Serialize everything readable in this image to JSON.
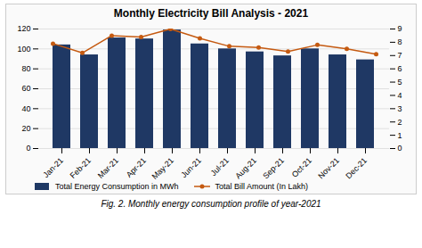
{
  "chart_data": {
    "type": "bar",
    "title": "Monthly Electricity Bill Analysis - 2021",
    "caption": "Fig. 2. Monthly energy consumption profile of year-2021",
    "categories": [
      "Jan-21",
      "Feb-21",
      "Mar-21",
      "Apr-21",
      "May-21",
      "Jun-21",
      "Jul-21",
      "Aug-21",
      "Sep-21",
      "Oct-21",
      "Nov-21",
      "Dec-21"
    ],
    "series": [
      {
        "name": "Total Energy Consumption in MWh",
        "type": "bar",
        "color": "#1f3864",
        "values": [
          104,
          94,
          111,
          110,
          119,
          105,
          100,
          97,
          93,
          100,
          94,
          89
        ]
      },
      {
        "name": "Total Bill Amount (In Lakh)",
        "type": "line",
        "color": "#c55a11",
        "marker": "circle",
        "axis": "y2",
        "values": [
          7.9,
          7.2,
          8.5,
          8.4,
          9.0,
          8.3,
          7.7,
          7.6,
          7.3,
          7.8,
          7.5,
          7.1
        ]
      }
    ],
    "ylim": [
      0,
      120
    ],
    "yticks": [
      0,
      20,
      40,
      60,
      80,
      100,
      120
    ],
    "y2lim": [
      0,
      9
    ],
    "y2ticks": [
      0,
      1,
      2,
      3,
      4,
      5,
      6,
      7,
      8,
      9
    ],
    "grid": true,
    "legend": "bottom"
  }
}
